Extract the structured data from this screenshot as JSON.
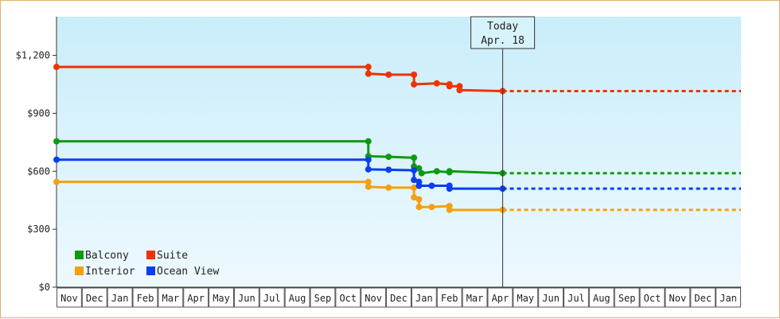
{
  "chart_data": {
    "type": "line",
    "title": "",
    "xlabel": "",
    "ylabel": "",
    "ylim": [
      0,
      1400
    ],
    "yticks": [
      {
        "value": 0,
        "label": "$0"
      },
      {
        "value": 300,
        "label": "$300"
      },
      {
        "value": 600,
        "label": "$600"
      },
      {
        "value": 900,
        "label": "$900"
      },
      {
        "value": 1200,
        "label": "$1,200"
      }
    ],
    "months": [
      "Nov",
      "Dec",
      "Jan",
      "Feb",
      "Mar",
      "Apr",
      "May",
      "Jun",
      "Jul",
      "Aug",
      "Sep",
      "Oct",
      "Nov",
      "Dec",
      "Jan",
      "Feb",
      "Mar",
      "Apr",
      "May",
      "Jun",
      "Jul",
      "Aug",
      "Sep",
      "Oct",
      "Nov",
      "Dec",
      "Jan"
    ],
    "xlim": [
      0,
      27
    ],
    "today": {
      "line1": "Today",
      "line2": "Apr. 18",
      "x": 17.6
    },
    "grid": false,
    "legend_position": "bottom-left",
    "series": [
      {
        "name": "Balcony",
        "color": "#119911",
        "points": [
          [
            0,
            755
          ],
          [
            12.3,
            755
          ],
          [
            12.3,
            678
          ],
          [
            13.1,
            675
          ],
          [
            14.1,
            670
          ],
          [
            14.1,
            625
          ],
          [
            14.3,
            615
          ],
          [
            14.4,
            590
          ],
          [
            15.0,
            600
          ],
          [
            15.5,
            595
          ],
          [
            15.5,
            600
          ],
          [
            17.6,
            590
          ]
        ],
        "projection": [
          [
            17.6,
            590
          ],
          [
            27,
            590
          ]
        ]
      },
      {
        "name": "Suite",
        "color": "#ee3300",
        "points": [
          [
            0,
            1140
          ],
          [
            12.3,
            1140
          ],
          [
            12.3,
            1105
          ],
          [
            13.1,
            1100
          ],
          [
            14.1,
            1100
          ],
          [
            14.1,
            1050
          ],
          [
            15.0,
            1055
          ],
          [
            15.5,
            1050
          ],
          [
            15.5,
            1040
          ],
          [
            15.9,
            1040
          ],
          [
            15.9,
            1020
          ],
          [
            17.6,
            1015
          ]
        ],
        "projection": [
          [
            17.6,
            1015
          ],
          [
            27,
            1015
          ]
        ]
      },
      {
        "name": "Interior",
        "color": "#f5a010",
        "points": [
          [
            0,
            545
          ],
          [
            12.3,
            545
          ],
          [
            12.3,
            520
          ],
          [
            13.1,
            515
          ],
          [
            14.1,
            515
          ],
          [
            14.1,
            465
          ],
          [
            14.3,
            455
          ],
          [
            14.3,
            415
          ],
          [
            14.8,
            415
          ],
          [
            15.5,
            420
          ],
          [
            15.5,
            400
          ],
          [
            17.6,
            400
          ]
        ],
        "projection": [
          [
            17.6,
            400
          ],
          [
            27,
            400
          ]
        ]
      },
      {
        "name": "Ocean View",
        "color": "#0a3ef0",
        "points": [
          [
            0,
            660
          ],
          [
            12.3,
            660
          ],
          [
            12.3,
            610
          ],
          [
            13.1,
            608
          ],
          [
            14.1,
            605
          ],
          [
            14.1,
            555
          ],
          [
            14.3,
            545
          ],
          [
            14.3,
            525
          ],
          [
            14.8,
            525
          ],
          [
            15.5,
            525
          ],
          [
            15.5,
            510
          ],
          [
            17.6,
            510
          ]
        ],
        "projection": [
          [
            17.6,
            510
          ],
          [
            27,
            510
          ]
        ]
      }
    ]
  }
}
